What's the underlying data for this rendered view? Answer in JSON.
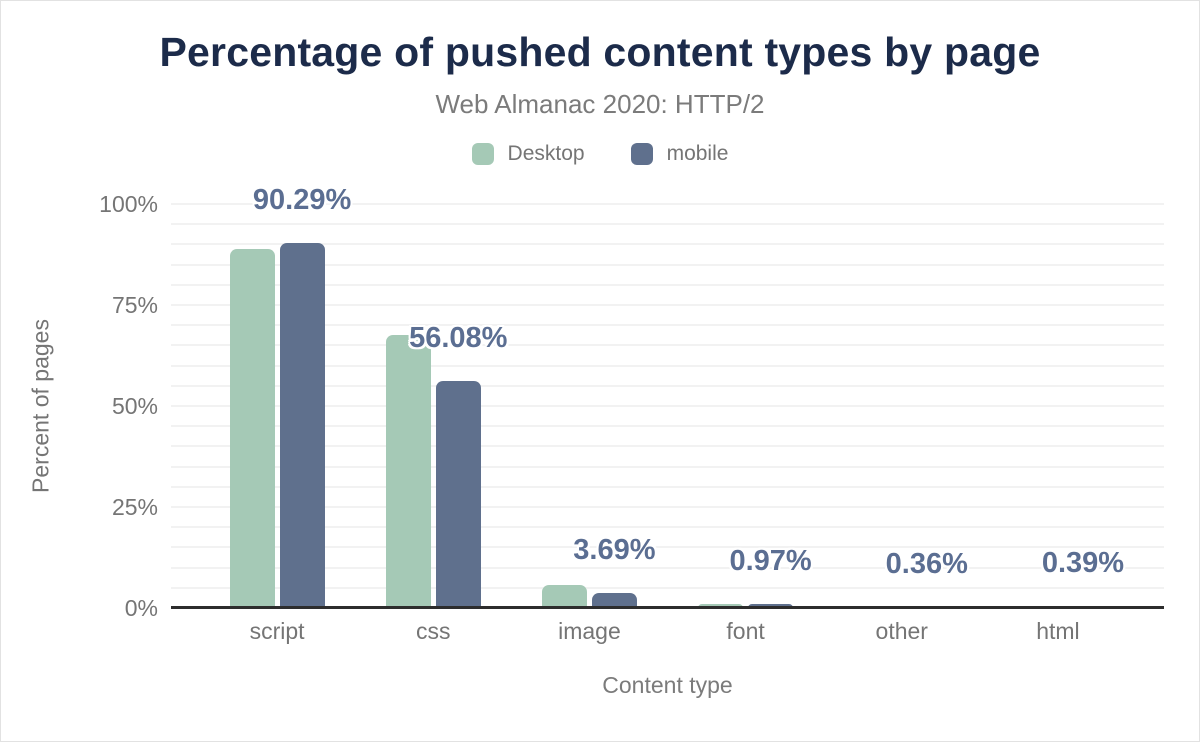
{
  "chart_data": {
    "type": "bar",
    "title": "Percentage of pushed content types by page",
    "subtitle": "Web Almanac 2020: HTTP/2",
    "xlabel": "Content type",
    "ylabel": "Percent of pages",
    "categories": [
      "script",
      "css",
      "image",
      "font",
      "other",
      "html"
    ],
    "series": [
      {
        "name": "Desktop",
        "color": "#a5c9b6",
        "values": [
          88.9,
          67.7,
          5.8,
          1.0,
          0.5,
          0.5
        ]
      },
      {
        "name": "mobile",
        "color": "#5f708d",
        "values": [
          90.29,
          56.08,
          3.69,
          0.97,
          0.36,
          0.39
        ]
      }
    ],
    "data_labels": [
      "90.29%",
      "56.08%",
      "3.69%",
      "0.97%",
      "0.36%",
      "0.39%"
    ],
    "data_labels_source": "mobile",
    "y_ticks": [
      {
        "label": "0%",
        "value": 0
      },
      {
        "label": "25%",
        "value": 25
      },
      {
        "label": "50%",
        "value": 50
      },
      {
        "label": "75%",
        "value": 75
      },
      {
        "label": "100%",
        "value": 100
      }
    ],
    "ylim": [
      0,
      100
    ],
    "grid": {
      "minor_step": 5,
      "color": "#f2f2f2",
      "visible": true
    },
    "legend_position": "top"
  },
  "style": {
    "title_color": "#1c2b4a",
    "subtitle_color": "#7b7b7b",
    "tick_color": "#757575",
    "data_label_color": "#5b6e92",
    "axis_line_color": "#2d2d2d",
    "background": "#ffffff"
  }
}
